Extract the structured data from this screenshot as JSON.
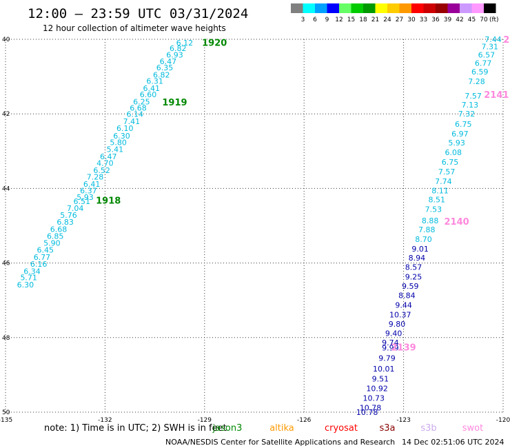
{
  "header": {
    "title": "12:00 — 23:59 UTC 03/31/2024",
    "subtitle": "12 hour collection of altimeter wave heights"
  },
  "legend": {
    "colors": [
      "#808080",
      "#00ffff",
      "#00a0ff",
      "#0000ff",
      "#66ff66",
      "#00cc00",
      "#009900",
      "#ffff00",
      "#ffcc00",
      "#ff9900",
      "#ff0000",
      "#cc0000",
      "#990000",
      "#990099",
      "#cc99ff",
      "#ff99ff",
      "#000000"
    ],
    "labels": [
      "3",
      "6",
      "9",
      "12",
      "15",
      "18",
      "21",
      "24",
      "27",
      "30",
      "33",
      "36",
      "39",
      "42",
      "45",
      "70"
    ],
    "unit": "(ft)"
  },
  "axes": {
    "x_ticks": [
      "-135",
      "-132",
      "-129",
      "-126",
      "-123",
      "-120"
    ],
    "y_ticks": [
      "40",
      "42",
      "44",
      "46",
      "48",
      "50"
    ],
    "lon_range": [
      -135,
      -120
    ],
    "lat_range": [
      40,
      50
    ]
  },
  "tracks": [
    {
      "id": "jason3-pass-west",
      "satellite": "jason3",
      "color": "#00bbdd",
      "points": [
        {
          "lat": 40.09,
          "lon": -129.6,
          "v": "6.12"
        },
        {
          "lat": 40.24,
          "lon": -129.8,
          "v": "6.82"
        },
        {
          "lat": 40.42,
          "lon": -129.9,
          "v": "6.93"
        },
        {
          "lat": 40.59,
          "lon": -130.1,
          "v": "6.47"
        },
        {
          "lat": 40.76,
          "lon": -130.2,
          "v": "6.35"
        },
        {
          "lat": 40.95,
          "lon": -130.3,
          "v": "6.82"
        },
        {
          "lat": 41.12,
          "lon": -130.5,
          "v": "6.31"
        },
        {
          "lat": 41.31,
          "lon": -130.6,
          "v": "6.41"
        },
        {
          "lat": 41.48,
          "lon": -130.7,
          "v": "6.60"
        },
        {
          "lat": 41.67,
          "lon": -130.9,
          "v": "6.25"
        },
        {
          "lat": 41.84,
          "lon": -131.0,
          "v": "6.68"
        },
        {
          "lat": 42.01,
          "lon": -131.1,
          "v": "6.14"
        },
        {
          "lat": 42.2,
          "lon": -131.2,
          "v": "7.41"
        },
        {
          "lat": 42.38,
          "lon": -131.4,
          "v": "6.10"
        },
        {
          "lat": 42.59,
          "lon": -131.5,
          "v": "6.30"
        },
        {
          "lat": 42.76,
          "lon": -131.6,
          "v": "5.80"
        },
        {
          "lat": 42.95,
          "lon": -131.7,
          "v": "5.41"
        },
        {
          "lat": 43.14,
          "lon": -131.9,
          "v": "6.47"
        },
        {
          "lat": 43.32,
          "lon": -132.0,
          "v": "4.70"
        },
        {
          "lat": 43.51,
          "lon": -132.1,
          "v": "6.52"
        },
        {
          "lat": 43.69,
          "lon": -132.3,
          "v": "7.28"
        },
        {
          "lat": 43.88,
          "lon": -132.4,
          "v": "6.41"
        },
        {
          "lat": 44.06,
          "lon": -132.5,
          "v": "6.37"
        },
        {
          "lat": 44.23,
          "lon": -132.6,
          "v": "5.93"
        },
        {
          "lat": 44.34,
          "lon": -132.7,
          "v": "6.51"
        },
        {
          "lat": 44.53,
          "lon": -132.9,
          "v": "7.04"
        },
        {
          "lat": 44.71,
          "lon": -133.1,
          "v": "5.76"
        },
        {
          "lat": 44.9,
          "lon": -133.2,
          "v": "6.83"
        },
        {
          "lat": 45.09,
          "lon": -133.4,
          "v": "6.68"
        },
        {
          "lat": 45.28,
          "lon": -133.5,
          "v": "6.85"
        },
        {
          "lat": 45.46,
          "lon": -133.6,
          "v": "5.90"
        },
        {
          "lat": 45.65,
          "lon": -133.8,
          "v": "6.45"
        },
        {
          "lat": 45.84,
          "lon": -133.9,
          "v": "6.77"
        },
        {
          "lat": 46.03,
          "lon": -134.0,
          "v": "6.16"
        },
        {
          "lat": 46.22,
          "lon": -134.2,
          "v": "6.34"
        },
        {
          "lat": 46.39,
          "lon": -134.3,
          "v": "5.71"
        },
        {
          "lat": 46.58,
          "lon": -134.4,
          "v": "6.30"
        }
      ]
    },
    {
      "id": "jason3-pass-east",
      "satellite": "jason3",
      "color": "#00bbdd",
      "points": [
        {
          "lat": 40.0,
          "lon": -120.3,
          "v": "7.44"
        },
        {
          "lat": 40.19,
          "lon": -120.4,
          "v": "7.31"
        },
        {
          "lat": 40.42,
          "lon": -120.5,
          "v": "6.57"
        },
        {
          "lat": 40.64,
          "lon": -120.6,
          "v": "6.77"
        },
        {
          "lat": 40.87,
          "lon": -120.7,
          "v": "6.59"
        },
        {
          "lat": 41.13,
          "lon": -120.8,
          "v": "7.28"
        },
        {
          "lat": 41.52,
          "lon": -120.9,
          "v": "7.57"
        },
        {
          "lat": 41.76,
          "lon": -121.0,
          "v": "7.13"
        },
        {
          "lat": 42.0,
          "lon": -121.1,
          "v": "7.32"
        },
        {
          "lat": 42.27,
          "lon": -121.2,
          "v": "6.75"
        },
        {
          "lat": 42.53,
          "lon": -121.3,
          "v": "6.97"
        },
        {
          "lat": 42.77,
          "lon": -121.4,
          "v": "5.93"
        },
        {
          "lat": 43.03,
          "lon": -121.5,
          "v": "6.08"
        },
        {
          "lat": 43.29,
          "lon": -121.6,
          "v": "6.75"
        },
        {
          "lat": 43.55,
          "lon": -121.7,
          "v": "7.57"
        },
        {
          "lat": 43.81,
          "lon": -121.8,
          "v": "7.74"
        },
        {
          "lat": 44.06,
          "lon": -121.9,
          "v": "8.11"
        },
        {
          "lat": 44.3,
          "lon": -122.0,
          "v": "8.51"
        },
        {
          "lat": 44.56,
          "lon": -122.1,
          "v": "7.53"
        },
        {
          "lat": 44.86,
          "lon": -122.2,
          "v": "8.88"
        },
        {
          "lat": 45.1,
          "lon": -122.3,
          "v": "7.88"
        },
        {
          "lat": 45.36,
          "lon": -122.4,
          "v": "8.70"
        }
      ]
    },
    {
      "id": "jason3-pass-east-high",
      "satellite": "jason3",
      "color": "#0000aa",
      "points": [
        {
          "lat": 45.62,
          "lon": -122.5,
          "v": "9.01"
        },
        {
          "lat": 45.86,
          "lon": -122.6,
          "v": "8.94"
        },
        {
          "lat": 46.11,
          "lon": -122.7,
          "v": "8.57"
        },
        {
          "lat": 46.37,
          "lon": -122.7,
          "v": "9.25"
        },
        {
          "lat": 46.62,
          "lon": -122.8,
          "v": "9.59"
        },
        {
          "lat": 46.87,
          "lon": -122.9,
          "v": "8.84"
        },
        {
          "lat": 47.13,
          "lon": -123.0,
          "v": "9.44"
        },
        {
          "lat": 47.38,
          "lon": -123.1,
          "v": "10.37"
        },
        {
          "lat": 47.63,
          "lon": -123.2,
          "v": "9.80"
        },
        {
          "lat": 47.88,
          "lon": -123.3,
          "v": "9.40"
        },
        {
          "lat": 48.13,
          "lon": -123.4,
          "v": "9.74"
        },
        {
          "lat": 48.27,
          "lon": -123.4,
          "v": "9.99"
        },
        {
          "lat": 48.55,
          "lon": -123.5,
          "v": "9.79"
        },
        {
          "lat": 48.84,
          "lon": -123.6,
          "v": "10.01"
        },
        {
          "lat": 49.1,
          "lon": -123.7,
          "v": "9.51"
        },
        {
          "lat": 49.36,
          "lon": -123.8,
          "v": "10.92"
        },
        {
          "lat": 49.62,
          "lon": -123.9,
          "v": "10.73"
        },
        {
          "lat": 49.88,
          "lon": -124.0,
          "v": "10.78"
        },
        {
          "lat": 50.0,
          "lon": -124.1,
          "v": "10.78"
        }
      ]
    }
  ],
  "pass_labels": [
    {
      "text": "1920",
      "lat": 40.08,
      "lon": -128.7,
      "color": "#008800"
    },
    {
      "text": "1919",
      "lat": 41.68,
      "lon": -129.9,
      "color": "#008800"
    },
    {
      "text": "1918",
      "lat": 44.32,
      "lon": -131.9,
      "color": "#008800"
    },
    {
      "text": "2141",
      "lat": 41.48,
      "lon": -120.2,
      "color": "#ff88dd"
    },
    {
      "text": "2140",
      "lat": 44.88,
      "lon": -121.4,
      "color": "#ff88dd"
    },
    {
      "text": "2139",
      "lat": 48.25,
      "lon": -123.0,
      "color": "#ff88dd"
    },
    {
      "text": "2",
      "lat": 40.0,
      "lon": -119.9,
      "color": "#ff88dd"
    }
  ],
  "footer": {
    "note": "note:  1) Time is in UTC;  2) SWH is in feet",
    "satellites": [
      {
        "name": "jason3",
        "color": "#008800"
      },
      {
        "name": "altika",
        "color": "#ff9900"
      },
      {
        "name": "cryosat",
        "color": "#ff0000"
      },
      {
        "name": "s3a",
        "color": "#880000"
      },
      {
        "name": "s3b",
        "color": "#ccaaee"
      },
      {
        "name": "swot",
        "color": "#ff88dd"
      }
    ],
    "credit": "NOAA/NESDIS Center for Satellite Applications and Research",
    "timestamp": "14 Dec 02:51:06 UTC 2024"
  }
}
